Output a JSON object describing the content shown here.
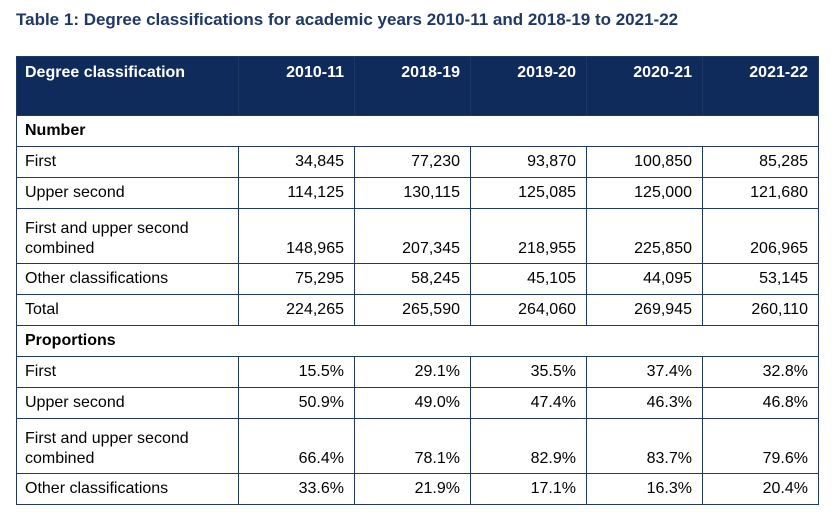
{
  "title": "Table 1: Degree classifications for academic years 2010-11 and 2018-19 to 2021-22",
  "header": {
    "label": "Degree classification",
    "years": [
      "2010-11",
      "2018-19",
      "2019-20",
      "2020-21",
      "2021-22"
    ]
  },
  "sections": [
    {
      "name": "Number",
      "rows": [
        {
          "label": "First",
          "values": [
            "34,845",
            "77,230",
            "93,870",
            "100,850",
            "85,285"
          ]
        },
        {
          "label": "Upper second",
          "values": [
            "114,125",
            "130,115",
            "125,085",
            "125,000",
            "121,680"
          ]
        },
        {
          "label": "First and upper second combined",
          "values": [
            "148,965",
            "207,345",
            "218,955",
            "225,850",
            "206,965"
          ]
        },
        {
          "label": "Other classifications",
          "values": [
            "75,295",
            "58,245",
            "45,105",
            "44,095",
            "53,145"
          ]
        },
        {
          "label": "Total",
          "values": [
            "224,265",
            "265,590",
            "264,060",
            "269,945",
            "260,110"
          ]
        }
      ]
    },
    {
      "name": "Proportions",
      "rows": [
        {
          "label": "First",
          "values": [
            "15.5%",
            "29.1%",
            "35.5%",
            "37.4%",
            "32.8%"
          ]
        },
        {
          "label": "Upper second",
          "values": [
            "50.9%",
            "49.0%",
            "47.4%",
            "46.3%",
            "46.8%"
          ]
        },
        {
          "label": "First and upper second combined",
          "values": [
            "66.4%",
            "78.1%",
            "82.9%",
            "83.7%",
            "79.6%"
          ]
        },
        {
          "label": "Other classifications",
          "values": [
            "33.6%",
            "21.9%",
            "17.1%",
            "16.3%",
            "20.4%"
          ]
        }
      ]
    }
  ]
}
